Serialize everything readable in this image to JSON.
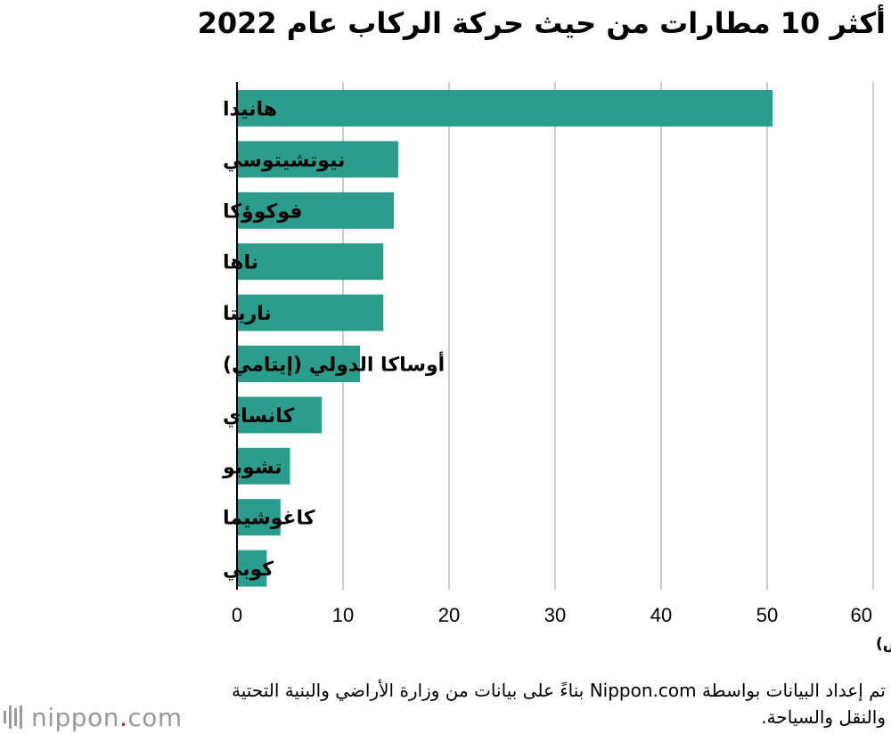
{
  "title": "أكثر 10 مطارات من حيث حركة الركاب عام 2022",
  "source": "تم إعداد البيانات بواسطة Nippon.com بناءً على بيانات من وزارة الأراضي والبنية التحتية والنقل والسياحة.",
  "logo": {
    "name": "nippon",
    "suffix": "com"
  },
  "colors": {
    "bar": "#2a9d8c",
    "grid": "#cccccc",
    "axis": "#000000"
  },
  "chart_data": {
    "type": "bar",
    "orientation": "horizontal",
    "categories": [
      "هانيدا",
      "نيوتشيتوسي",
      "فوكوؤكا",
      "ناها",
      "ناريتا",
      "أوساكا الدولي (إيتامي)",
      "كانساي",
      "تشوبو",
      "كاغوشيما",
      "كوبي"
    ],
    "values": [
      50.5,
      15.2,
      14.8,
      13.8,
      13.8,
      11.6,
      8.0,
      5.0,
      4.1,
      2.8
    ],
    "xlim": [
      0,
      60
    ],
    "xticks": [
      0,
      10,
      20,
      30,
      40,
      50,
      60
    ],
    "xlabel": "(مليون شخص)",
    "grid": true,
    "legend": "none"
  }
}
